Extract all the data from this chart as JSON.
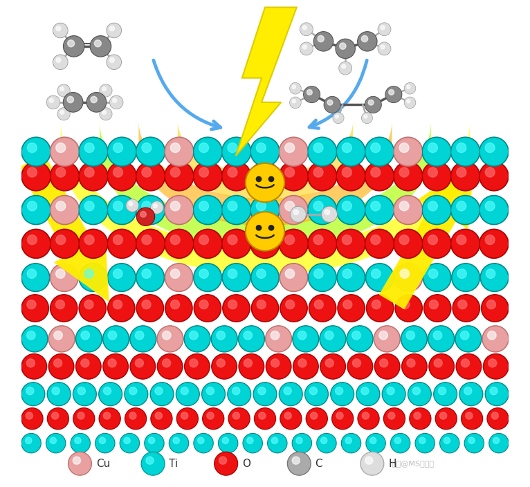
{
  "bg_color": "#ffffff",
  "legend_items": [
    {
      "label": "Cu",
      "color": "#e8a0a0",
      "edge": "#c07070"
    },
    {
      "label": "Ti",
      "color": "#00d4d4",
      "edge": "#009999"
    },
    {
      "label": "O",
      "color": "#ee1111",
      "edge": "#aa0000"
    },
    {
      "label": "C",
      "color": "#aaaaaa",
      "edge": "#777777"
    },
    {
      "label": "H",
      "color": "#dddddd",
      "edge": "#aaaaaa"
    }
  ],
  "watermark": "知乎@MS杨站长",
  "arc_colors": [
    [
      "#ffff00",
      0.6
    ],
    [
      "#aaff00",
      0.55
    ],
    [
      "#ffaa00",
      0.5
    ],
    [
      "#ff7700",
      0.45
    ]
  ]
}
